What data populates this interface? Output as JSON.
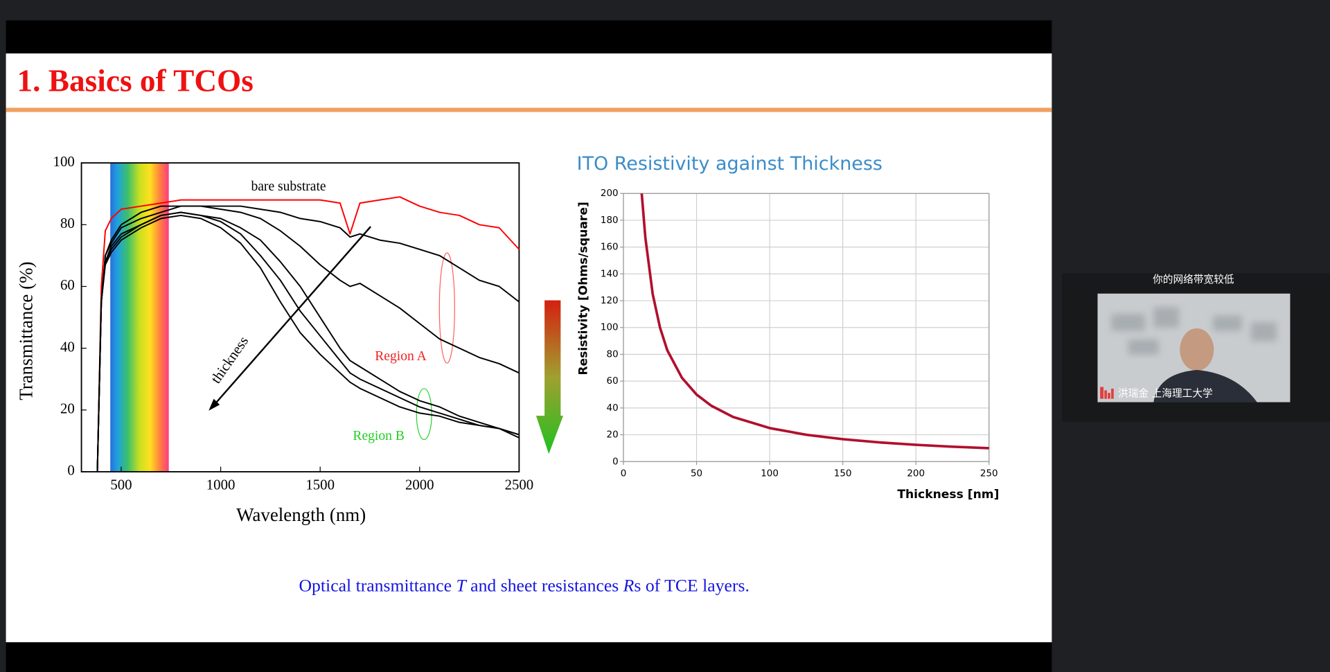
{
  "slide": {
    "title": "1. Basics of TCOs",
    "caption": [
      "Optical transmittance ",
      "T",
      " and sheet resistances ",
      "R",
      "s of TCE layers."
    ]
  },
  "chart_data": [
    {
      "type": "line",
      "xlabel": "Wavelength (nm)",
      "ylabel": "Transmittance (%)",
      "annotations": [
        "bare substrate",
        "thickness",
        "Region A",
        "Region B"
      ],
      "x": [
        380,
        400,
        420,
        450,
        500,
        600,
        700,
        800,
        900,
        1000,
        1100,
        1200,
        1300,
        1400,
        1500,
        1600,
        1650,
        1700,
        1800,
        1900,
        2000,
        2100,
        2200,
        2300,
        2400,
        2500
      ],
      "series": [
        {
          "color": "#ff0000",
          "values": [
            0,
            60,
            78,
            82,
            85,
            86,
            87,
            88,
            88,
            88,
            88,
            88,
            88,
            88,
            88,
            87,
            77,
            87,
            88,
            89,
            86,
            84,
            83,
            80,
            79,
            72
          ]
        },
        {
          "color": "#000000",
          "values": [
            0,
            55,
            70,
            75,
            80,
            84,
            86,
            86,
            86,
            86,
            86,
            85,
            84,
            82,
            81,
            79,
            76,
            77,
            75,
            74,
            72,
            70,
            66,
            62,
            60,
            55
          ]
        },
        {
          "color": "#000000",
          "values": [
            0,
            55,
            70,
            74,
            79,
            82,
            84,
            86,
            86,
            85,
            84,
            82,
            78,
            73,
            67,
            62,
            60,
            61,
            57,
            53,
            48,
            43,
            40,
            37,
            35,
            32
          ]
        },
        {
          "color": "#000000",
          "values": [
            0,
            55,
            68,
            73,
            77,
            80,
            83,
            84,
            83,
            82,
            79,
            75,
            68,
            60,
            50,
            40,
            36,
            34,
            30,
            26,
            23,
            21,
            18,
            16,
            14,
            12
          ]
        },
        {
          "color": "#000000",
          "values": [
            0,
            55,
            68,
            72,
            76,
            80,
            83,
            84,
            83,
            81,
            77,
            70,
            62,
            52,
            44,
            36,
            32,
            30,
            27,
            24,
            21,
            19,
            17,
            15,
            14,
            12
          ]
        },
        {
          "color": "#000000",
          "values": [
            0,
            55,
            67,
            71,
            75,
            79,
            82,
            83,
            82,
            79,
            74,
            66,
            55,
            45,
            38,
            32,
            29,
            27,
            24,
            21,
            19,
            18,
            16,
            15,
            14,
            11
          ]
        }
      ],
      "xlim": [
        300,
        2500
      ],
      "xticks": [
        500,
        1000,
        1500,
        2000,
        2500
      ],
      "ylim": [
        0,
        100
      ],
      "yticks": [
        0,
        20,
        40,
        60,
        80,
        100
      ],
      "grid": false
    },
    {
      "type": "line",
      "title": "ITO Resistivity against Thickness",
      "xlabel": "Thickness [nm]",
      "ylabel": "Resistivity [Ohms/square]",
      "x": [
        12.5,
        15,
        20,
        25,
        30,
        40,
        50,
        60,
        75,
        100,
        125,
        150,
        175,
        200,
        225,
        250
      ],
      "series": [
        {
          "color": "#b0102e",
          "values": [
            200,
            167,
            125,
            100,
            83,
            62.5,
            50,
            41.7,
            33.3,
            25,
            20,
            16.7,
            14.3,
            12.5,
            11.1,
            10
          ]
        }
      ],
      "xlim": [
        0,
        250
      ],
      "xticks": [
        0,
        50,
        100,
        150,
        200,
        250
      ],
      "ylim": [
        0,
        200
      ],
      "yticks": [
        0,
        20,
        40,
        60,
        80,
        100,
        120,
        140,
        160,
        180,
        200
      ],
      "grid": true
    }
  ],
  "video": {
    "notice": "你的网络带宽较低",
    "name": "洪瑞金 上海理工大学"
  }
}
